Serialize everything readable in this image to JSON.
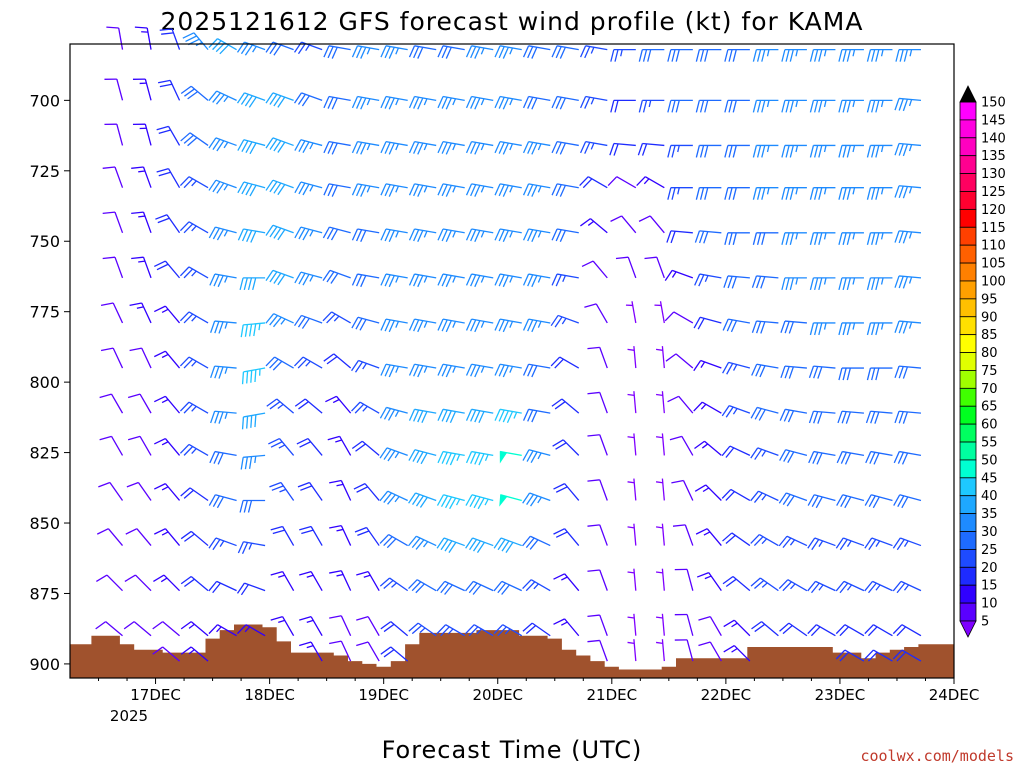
{
  "chart_data": {
    "type": "wind_barb_time_height",
    "title": "2025121612 GFS forecast wind profile (kt) for KAMA",
    "xlabel": "Forecast Time (UTC)",
    "ylabel": "",
    "x_ticks": [
      "17DEC",
      "18DEC",
      "19DEC",
      "20DEC",
      "21DEC",
      "22DEC",
      "23DEC",
      "24DEC"
    ],
    "x_tick_hours": [
      12,
      36,
      60,
      84,
      108,
      132,
      156,
      180
    ],
    "x_year_label": "2025",
    "x_range_hours": [
      -6,
      180
    ],
    "y_ticks": [
      700,
      725,
      750,
      775,
      800,
      825,
      850,
      875,
      900
    ],
    "y_range_hpa": [
      680,
      905
    ],
    "units": "kt",
    "colorbar": {
      "levels": [
        5,
        10,
        15,
        20,
        25,
        30,
        35,
        40,
        45,
        50,
        55,
        60,
        65,
        70,
        75,
        80,
        85,
        90,
        95,
        100,
        105,
        110,
        115,
        120,
        125,
        130,
        135,
        140,
        145,
        150
      ],
      "colors": [
        "#7f00ff",
        "#5a00ff",
        "#3000ff",
        "#1e2bff",
        "#1e4bff",
        "#1e6bff",
        "#1e8bff",
        "#1ea8ff",
        "#1ec8ff",
        "#00ffd2",
        "#00ffa0",
        "#00ff60",
        "#00ff20",
        "#40ff00",
        "#a0ff00",
        "#e0ff00",
        "#ffff00",
        "#ffe000",
        "#ffc000",
        "#ffa000",
        "#ff8000",
        "#ff6000",
        "#ff4000",
        "#ff0000",
        "#ff0030",
        "#ff0060",
        "#ff0090",
        "#ff00c0",
        "#ff00e0",
        "#ff00ff"
      ]
    },
    "barb_levels_hpa": [
      682,
      700,
      716,
      731,
      747,
      763,
      779,
      795,
      811,
      826,
      842,
      858,
      874,
      890,
      899
    ],
    "time_hours": [
      0,
      6,
      12,
      18,
      24,
      30,
      36,
      42,
      48,
      54,
      60,
      66,
      72,
      78,
      84,
      90,
      96,
      102,
      108,
      114,
      120,
      126,
      132,
      138,
      144,
      150,
      156,
      162,
      168,
      174,
      180
    ],
    "wind_direction_deg": [
      [
        350,
        350,
        340,
        320,
        300,
        290,
        290,
        290,
        280,
        280,
        280,
        280,
        280,
        280,
        280,
        280,
        280,
        280,
        270,
        270,
        270,
        270,
        270,
        270,
        270,
        270,
        270,
        270,
        270,
        280,
        280
      ],
      [
        345,
        345,
        335,
        310,
        295,
        290,
        290,
        290,
        280,
        280,
        280,
        280,
        280,
        280,
        280,
        280,
        280,
        280,
        270,
        270,
        270,
        270,
        270,
        270,
        270,
        270,
        270,
        270,
        275,
        280,
        280
      ],
      [
        345,
        345,
        330,
        305,
        290,
        285,
        290,
        285,
        280,
        280,
        280,
        280,
        280,
        280,
        280,
        280,
        280,
        280,
        275,
        275,
        270,
        270,
        270,
        270,
        270,
        270,
        270,
        270,
        275,
        280,
        280
      ],
      [
        340,
        340,
        330,
        300,
        290,
        285,
        290,
        285,
        280,
        280,
        280,
        280,
        280,
        280,
        280,
        280,
        280,
        300,
        300,
        300,
        270,
        270,
        270,
        270,
        270,
        270,
        270,
        270,
        275,
        280,
        280
      ],
      [
        340,
        340,
        325,
        300,
        285,
        280,
        290,
        285,
        285,
        280,
        280,
        280,
        280,
        280,
        280,
        280,
        280,
        310,
        320,
        320,
        275,
        275,
        270,
        270,
        270,
        270,
        270,
        270,
        275,
        280,
        280
      ],
      [
        340,
        340,
        320,
        300,
        280,
        270,
        290,
        285,
        290,
        280,
        280,
        280,
        280,
        280,
        280,
        280,
        280,
        320,
        340,
        340,
        290,
        280,
        275,
        275,
        270,
        270,
        270,
        270,
        275,
        280,
        280
      ],
      [
        335,
        335,
        320,
        300,
        275,
        265,
        295,
        290,
        300,
        285,
        280,
        280,
        280,
        280,
        280,
        280,
        290,
        330,
        350,
        350,
        300,
        285,
        280,
        275,
        275,
        270,
        270,
        270,
        275,
        280,
        280
      ],
      [
        335,
        335,
        320,
        300,
        275,
        260,
        300,
        300,
        310,
        290,
        280,
        280,
        280,
        280,
        280,
        280,
        300,
        340,
        355,
        355,
        310,
        290,
        285,
        280,
        275,
        275,
        270,
        270,
        275,
        280,
        280
      ],
      [
        330,
        330,
        320,
        300,
        275,
        260,
        310,
        310,
        320,
        300,
        285,
        280,
        280,
        280,
        280,
        280,
        310,
        340,
        355,
        355,
        320,
        300,
        290,
        285,
        280,
        275,
        275,
        275,
        275,
        280,
        280
      ],
      [
        330,
        330,
        320,
        300,
        280,
        265,
        320,
        320,
        330,
        310,
        290,
        285,
        280,
        280,
        280,
        285,
        315,
        340,
        355,
        355,
        330,
        310,
        295,
        290,
        285,
        280,
        280,
        280,
        280,
        280,
        280
      ],
      [
        325,
        325,
        320,
        305,
        285,
        270,
        325,
        325,
        335,
        320,
        295,
        290,
        285,
        285,
        285,
        290,
        320,
        340,
        355,
        355,
        335,
        315,
        300,
        295,
        290,
        285,
        285,
        285,
        285,
        285,
        285
      ],
      [
        320,
        320,
        320,
        310,
        290,
        280,
        330,
        330,
        335,
        325,
        300,
        295,
        290,
        290,
        290,
        295,
        320,
        340,
        355,
        355,
        340,
        320,
        305,
        300,
        295,
        290,
        290,
        290,
        290,
        290,
        290
      ],
      [
        315,
        315,
        315,
        310,
        295,
        290,
        330,
        330,
        335,
        330,
        305,
        300,
        295,
        295,
        295,
        300,
        320,
        340,
        355,
        355,
        345,
        325,
        310,
        305,
        300,
        295,
        295,
        295,
        295,
        295,
        295
      ],
      [
        310,
        310,
        310,
        310,
        300,
        300,
        330,
        330,
        335,
        330,
        310,
        305,
        300,
        300,
        300,
        305,
        320,
        340,
        355,
        355,
        345,
        330,
        315,
        310,
        305,
        300,
        300,
        300,
        300,
        300,
        300
      ],
      [
        310,
        310,
        310,
        310,
        300,
        300,
        330,
        330,
        335,
        330,
        310,
        305,
        300,
        300,
        300,
        305,
        320,
        340,
        355,
        355,
        345,
        330,
        315,
        310,
        305,
        300,
        300,
        300,
        300,
        300,
        300
      ]
    ],
    "wind_speed_kt": [
      [
        10,
        15,
        20,
        35,
        40,
        35,
        30,
        25,
        30,
        35,
        35,
        30,
        30,
        35,
        35,
        30,
        30,
        25,
        25,
        30,
        30,
        30,
        30,
        35,
        35,
        35,
        35,
        35,
        35,
        30,
        30
      ],
      [
        10,
        15,
        20,
        30,
        35,
        40,
        40,
        30,
        30,
        35,
        35,
        35,
        35,
        35,
        35,
        30,
        30,
        25,
        20,
        25,
        30,
        30,
        30,
        35,
        35,
        35,
        35,
        35,
        35,
        30,
        30
      ],
      [
        10,
        15,
        20,
        30,
        35,
        40,
        40,
        35,
        30,
        35,
        35,
        35,
        35,
        35,
        35,
        35,
        30,
        25,
        20,
        20,
        25,
        30,
        30,
        35,
        35,
        35,
        35,
        35,
        35,
        30,
        30
      ],
      [
        10,
        15,
        20,
        25,
        35,
        40,
        40,
        35,
        30,
        35,
        35,
        35,
        35,
        35,
        35,
        35,
        30,
        20,
        10,
        15,
        25,
        30,
        30,
        35,
        35,
        35,
        35,
        35,
        35,
        30,
        30
      ],
      [
        10,
        15,
        20,
        25,
        35,
        40,
        40,
        35,
        30,
        30,
        35,
        35,
        35,
        35,
        35,
        35,
        30,
        15,
        10,
        10,
        20,
        30,
        30,
        30,
        35,
        35,
        35,
        35,
        35,
        30,
        30
      ],
      [
        10,
        15,
        20,
        25,
        35,
        40,
        40,
        35,
        30,
        30,
        35,
        35,
        35,
        35,
        35,
        35,
        25,
        10,
        10,
        10,
        15,
        25,
        30,
        30,
        35,
        35,
        35,
        35,
        35,
        30,
        30
      ],
      [
        10,
        15,
        15,
        25,
        35,
        45,
        35,
        30,
        25,
        30,
        35,
        35,
        35,
        35,
        35,
        35,
        25,
        10,
        5,
        5,
        10,
        20,
        30,
        30,
        30,
        35,
        35,
        35,
        35,
        30,
        30
      ],
      [
        10,
        10,
        15,
        25,
        35,
        45,
        30,
        25,
        20,
        25,
        35,
        35,
        35,
        35,
        35,
        30,
        20,
        10,
        5,
        5,
        10,
        15,
        25,
        30,
        30,
        30,
        30,
        30,
        30,
        30,
        30
      ],
      [
        10,
        10,
        15,
        25,
        35,
        40,
        25,
        20,
        15,
        25,
        35,
        40,
        40,
        40,
        45,
        30,
        20,
        10,
        5,
        5,
        10,
        15,
        25,
        30,
        30,
        30,
        30,
        30,
        30,
        30,
        30
      ],
      [
        10,
        10,
        15,
        25,
        30,
        35,
        25,
        20,
        15,
        20,
        35,
        40,
        45,
        45,
        50,
        35,
        20,
        10,
        5,
        5,
        10,
        15,
        20,
        25,
        30,
        30,
        30,
        30,
        30,
        30,
        30
      ],
      [
        10,
        10,
        15,
        20,
        30,
        30,
        25,
        20,
        15,
        20,
        35,
        40,
        45,
        45,
        50,
        35,
        20,
        10,
        5,
        5,
        10,
        15,
        20,
        25,
        30,
        30,
        30,
        30,
        30,
        30,
        30
      ],
      [
        10,
        10,
        15,
        20,
        25,
        25,
        20,
        20,
        15,
        20,
        30,
        35,
        40,
        40,
        40,
        30,
        20,
        10,
        5,
        5,
        10,
        15,
        20,
        25,
        25,
        25,
        25,
        25,
        25,
        25,
        25
      ],
      [
        10,
        10,
        15,
        20,
        20,
        20,
        15,
        15,
        15,
        15,
        25,
        30,
        30,
        30,
        30,
        25,
        15,
        10,
        5,
        5,
        10,
        15,
        20,
        25,
        25,
        25,
        25,
        25,
        25,
        25,
        25
      ],
      [
        10,
        10,
        10,
        15,
        15,
        15,
        15,
        15,
        10,
        10,
        20,
        25,
        25,
        25,
        25,
        20,
        15,
        10,
        5,
        5,
        10,
        10,
        15,
        20,
        20,
        20,
        20,
        20,
        20,
        20,
        20
      ],
      [
        10,
        10,
        10,
        15,
        15,
        15,
        15,
        15,
        10,
        10,
        20,
        25,
        25,
        25,
        25,
        20,
        15,
        10,
        5,
        5,
        10,
        10,
        15,
        20,
        20,
        20,
        20,
        20,
        20,
        20,
        20
      ]
    ],
    "terrain_hours": [
      -6,
      -3,
      0,
      3,
      6,
      9,
      12,
      15,
      18,
      21,
      24,
      27,
      30,
      33,
      36,
      39,
      42,
      45,
      48,
      51,
      54,
      57,
      60,
      63,
      66,
      69,
      72,
      75,
      78,
      81,
      84,
      87,
      90,
      93,
      96,
      99,
      102,
      105,
      108,
      111,
      114,
      117,
      120,
      123,
      126,
      129,
      132,
      135,
      138,
      141,
      144,
      147,
      150,
      153,
      156,
      159,
      162,
      165,
      168,
      171,
      174,
      177,
      180
    ],
    "terrain_top_hpa": [
      893,
      893,
      890,
      890,
      893,
      895,
      895,
      896,
      896,
      896,
      891,
      888,
      886,
      886,
      887,
      892,
      896,
      896,
      896,
      897,
      899,
      900,
      901,
      899,
      893,
      889,
      889,
      889,
      889,
      888,
      888,
      888,
      890,
      890,
      891,
      895,
      897,
      899,
      901,
      902,
      902,
      902,
      901,
      898,
      898,
      898,
      898,
      898,
      894,
      894,
      894,
      894,
      894,
      894,
      896,
      896,
      898,
      896,
      895,
      894,
      893,
      893,
      893
    ]
  },
  "credit": "coolwx.com/models"
}
